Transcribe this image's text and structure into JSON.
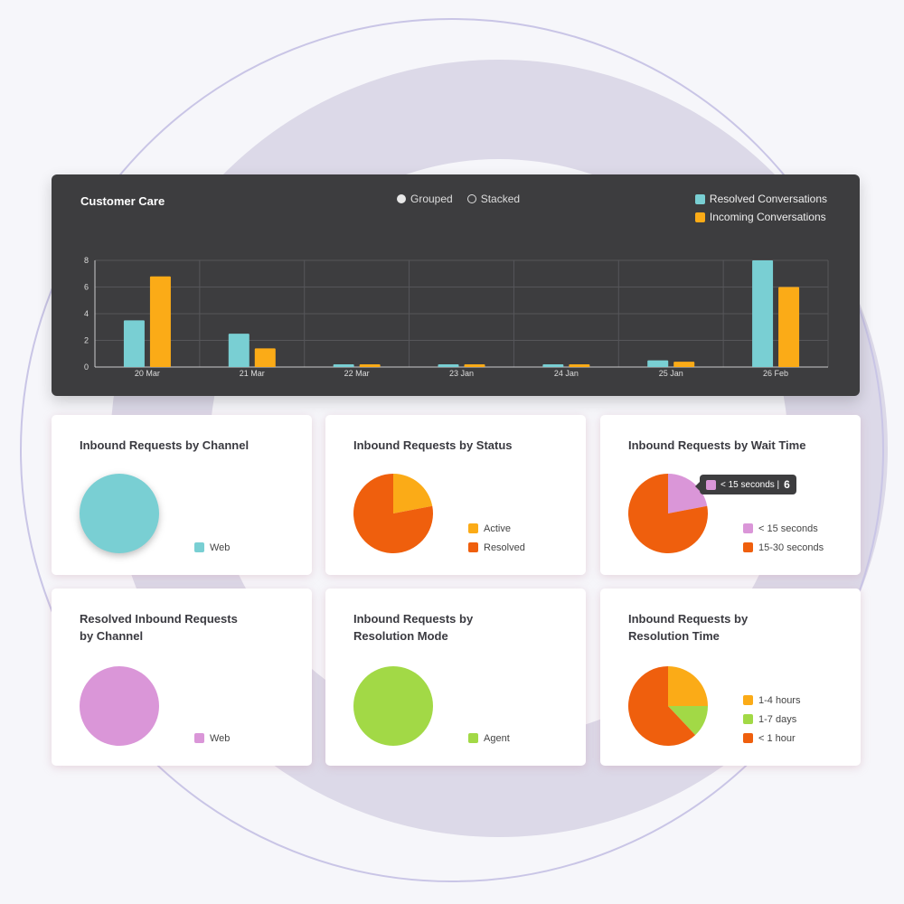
{
  "main": {
    "title": "Customer Care",
    "mode_options": [
      "Grouped",
      "Stacked"
    ],
    "selected_mode": "Grouped",
    "legend": [
      {
        "label": "Resolved Conversations",
        "color": "#79cfd3"
      },
      {
        "label": "Incoming Conversations",
        "color": "#fbab17"
      }
    ]
  },
  "chart_data": {
    "type": "bar",
    "title": "Customer Care",
    "categories": [
      "20 Mar",
      "21 Mar",
      "22 Mar",
      "23 Jan",
      "24 Jan",
      "25 Jan",
      "26 Feb"
    ],
    "series": [
      {
        "name": "Resolved Conversations",
        "values": [
          3.5,
          2.5,
          0.2,
          0.2,
          0.2,
          0.5,
          8
        ],
        "color": "#79cfd3"
      },
      {
        "name": "Incoming Conversations",
        "values": [
          6.8,
          1.4,
          0.2,
          0.2,
          0.2,
          0.4,
          6
        ],
        "color": "#fbab17"
      }
    ],
    "ylim": [
      0,
      8
    ],
    "yticks": [
      0,
      2,
      4,
      6,
      8
    ],
    "grid": true,
    "xlabel": "",
    "ylabel": ""
  },
  "cards": [
    {
      "title": "Inbound Requests by Channel",
      "slices": [
        {
          "label": "Web",
          "value": 1,
          "color": "#79cfd3"
        }
      ],
      "shadow": true
    },
    {
      "title": "Inbound Requests by Status",
      "slices": [
        {
          "label": "Active",
          "value": 0.22,
          "color": "#fbab17"
        },
        {
          "label": "Resolved",
          "value": 0.78,
          "color": "#ef5f0d"
        }
      ]
    },
    {
      "title": "Inbound Requests by Wait Time",
      "slices": [
        {
          "label": "< 15 seconds",
          "value": 0.22,
          "color": "#da96d8"
        },
        {
          "label": "15-30 seconds",
          "value": 0.78,
          "color": "#ef5f0d"
        }
      ],
      "tooltip": {
        "label": "< 15 seconds |",
        "value": "6",
        "color": "#da96d8"
      }
    },
    {
      "title": "Resolved Inbound Requests by Channel",
      "slices": [
        {
          "label": "Web",
          "value": 1,
          "color": "#da96d8"
        }
      ]
    },
    {
      "title": "Inbound Requests by Resolution Mode",
      "slices": [
        {
          "label": "Agent",
          "value": 1,
          "color": "#a2d946"
        }
      ]
    },
    {
      "title": "Inbound Requests by Resolution Time",
      "slices": [
        {
          "label": "1-4 hours",
          "value": 0.25,
          "color": "#fbab17"
        },
        {
          "label": "1-7 days",
          "value": 0.13,
          "color": "#a2d946"
        },
        {
          "label": "< 1 hour",
          "value": 0.62,
          "color": "#ef5f0d"
        }
      ]
    }
  ]
}
